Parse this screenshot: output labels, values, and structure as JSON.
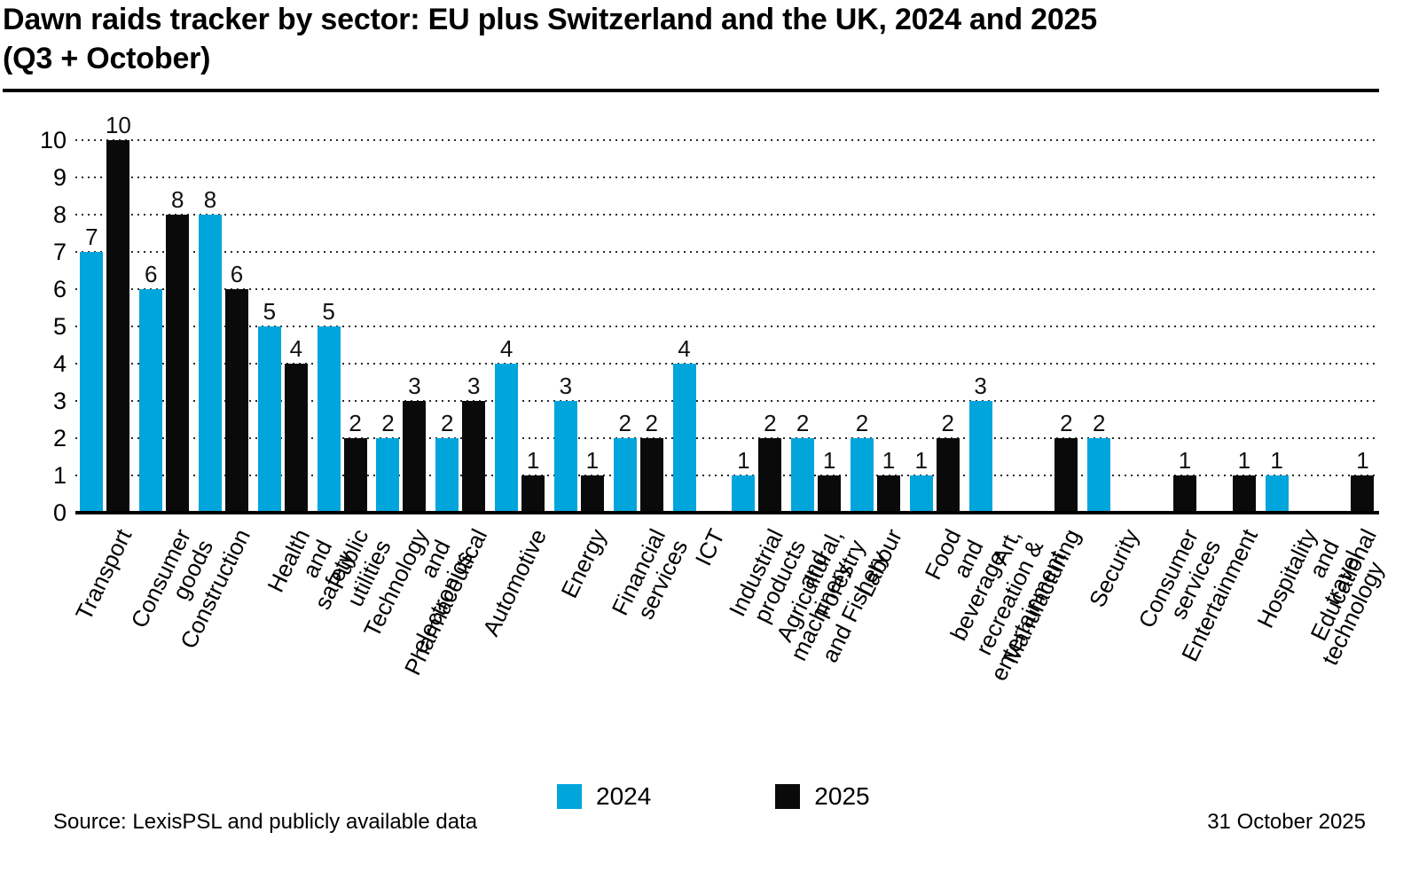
{
  "chart_data": {
    "type": "bar",
    "title": "Dawn raids tracker by sector: EU plus Switzerland and the UK, 2024 and 2025\n(Q3 + October)",
    "categories": [
      "Transport",
      "Consumer goods",
      "Construction",
      "Health and safety",
      "Public utilities",
      "Technology and\nelectronics",
      "Pharmaceutical",
      "Automotive",
      "Energy",
      "Financial services",
      "ICT",
      "Industrial products\nand machinery",
      "Agricultural, Forestry\nand Fishery",
      "Labour",
      "Food and beverage",
      "Art, recreation &\nentertainment",
      "Manufacturing",
      "Security",
      "Consumer services",
      "Entertainment",
      "Hospitality and\ntravel technology",
      "Educational"
    ],
    "series": [
      {
        "name": "2024",
        "color": "#00a5dc",
        "values": [
          7,
          6,
          8,
          5,
          5,
          2,
          2,
          4,
          3,
          2,
          4,
          1,
          2,
          2,
          1,
          3,
          0,
          2,
          0,
          0,
          1,
          0
        ]
      },
      {
        "name": "2025",
        "color": "#0a0a0a",
        "values": [
          10,
          8,
          6,
          4,
          2,
          3,
          3,
          1,
          1,
          2,
          0,
          2,
          1,
          1,
          2,
          0,
          2,
          0,
          1,
          1,
          0,
          1
        ]
      }
    ],
    "ylim": [
      0,
      10
    ],
    "yticks": [
      0,
      1,
      2,
      3,
      4,
      5,
      6,
      7,
      8,
      9,
      10
    ],
    "grid": "dotted horizontal gridlines at each integer",
    "legend_position": "bottom center",
    "bar_value_labels": "shown above each bar (only when value > 0)"
  },
  "footer": {
    "source": "Source: LexisPSL and publicly available data",
    "date": "31 October 2025"
  }
}
